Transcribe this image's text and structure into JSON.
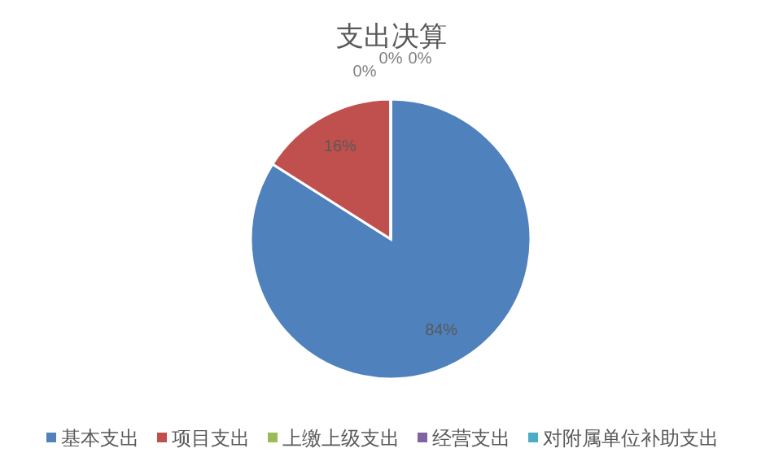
{
  "chart_data": {
    "type": "pie",
    "title": "支出决算",
    "categories": [
      "基本支出",
      "项目支出",
      "上缴上级支出",
      "经营支出",
      "对附属单位补助支出"
    ],
    "values": [
      84,
      16,
      0,
      0,
      0
    ],
    "colors": [
      "#4f81bd",
      "#c0504d",
      "#9bbb59",
      "#8064a2",
      "#4bacc6"
    ],
    "value_labels": [
      "84%",
      "16%",
      "0%",
      "0%",
      "0%"
    ],
    "legend": "bottom"
  }
}
